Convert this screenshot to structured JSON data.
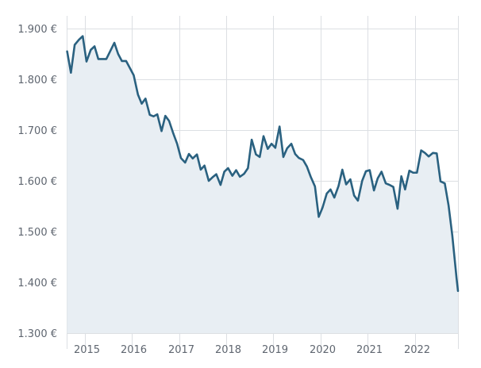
{
  "chart_data": {
    "type": "area",
    "title": "",
    "xlabel": "",
    "ylabel": "",
    "x_tick_labels": [
      "2015",
      "2016",
      "2017",
      "2018",
      "2019",
      "2020",
      "2021",
      "2022"
    ],
    "y_tick_labels": [
      "1.300 €",
      "1.400 €",
      "1.500 €",
      "1.600 €",
      "1.700 €",
      "1.800 €",
      "1.900 €"
    ],
    "y_ticks": [
      1300,
      1400,
      1500,
      1600,
      1700,
      1800,
      1900
    ],
    "x_ticks": [
      2015,
      2016,
      2017,
      2018,
      2019,
      2020,
      2021,
      2022
    ],
    "xlim": [
      2014.62,
      2022.91
    ],
    "ylim": [
      1300,
      1925
    ],
    "grid": true,
    "legend": "none",
    "colors": {
      "line": "#2a6180",
      "fill": "#e8eef3",
      "grid": "#dcdfe3",
      "text": "#5f6670"
    },
    "series": [
      {
        "x": [
          2014.63,
          2014.71,
          2014.79,
          2014.88,
          2014.96,
          2015.04,
          2015.13,
          2015.21,
          2015.29,
          2015.38,
          2015.46,
          2015.54,
          2015.63,
          2015.71,
          2015.79,
          2015.88,
          2015.96,
          2016.04,
          2016.13,
          2016.21,
          2016.29,
          2016.38,
          2016.46,
          2016.54,
          2016.63,
          2016.71,
          2016.79,
          2016.88,
          2016.96,
          2017.04,
          2017.13,
          2017.21,
          2017.29,
          2017.38,
          2017.46,
          2017.54,
          2017.63,
          2017.71,
          2017.79,
          2017.88,
          2017.96,
          2018.04,
          2018.13,
          2018.21,
          2018.29,
          2018.38,
          2018.46,
          2018.54,
          2018.63,
          2018.71,
          2018.79,
          2018.88,
          2018.96,
          2019.04,
          2019.13,
          2019.21,
          2019.29,
          2019.38,
          2019.46,
          2019.54,
          2019.63,
          2019.71,
          2019.79,
          2019.88,
          2019.96,
          2020.04,
          2020.13,
          2020.21,
          2020.29,
          2020.38,
          2020.46,
          2020.54,
          2020.63,
          2020.71,
          2020.79,
          2020.88,
          2020.96,
          2021.04,
          2021.13,
          2021.21,
          2021.29,
          2021.38,
          2021.46,
          2021.54,
          2021.63,
          2021.71,
          2021.79,
          2021.88,
          2021.96,
          2022.04,
          2022.13,
          2022.21,
          2022.29,
          2022.38,
          2022.46,
          2022.54,
          2022.63,
          2022.71,
          2022.79,
          2022.88,
          2022.91
        ],
        "values": [
          1855,
          1813,
          1868,
          1878,
          1885,
          1835,
          1858,
          1865,
          1840,
          1840,
          1840,
          1855,
          1872,
          1850,
          1836,
          1836,
          1822,
          1808,
          1770,
          1752,
          1762,
          1730,
          1727,
          1731,
          1698,
          1728,
          1718,
          1693,
          1673,
          1645,
          1636,
          1653,
          1644,
          1652,
          1622,
          1630,
          1600,
          1607,
          1613,
          1592,
          1618,
          1625,
          1610,
          1621,
          1608,
          1614,
          1625,
          1681,
          1652,
          1647,
          1688,
          1663,
          1673,
          1665,
          1707,
          1647,
          1664,
          1673,
          1653,
          1645,
          1641,
          1628,
          1608,
          1589,
          1529,
          1547,
          1575,
          1583,
          1567,
          1590,
          1622,
          1593,
          1603,
          1571,
          1561,
          1600,
          1619,
          1621,
          1581,
          1605,
          1618,
          1595,
          1592,
          1588,
          1545,
          1609,
          1583,
          1620,
          1616,
          1616,
          1660,
          1655,
          1648,
          1655,
          1654,
          1599,
          1595,
          1552,
          1492,
          1408,
          1383
        ]
      }
    ]
  }
}
